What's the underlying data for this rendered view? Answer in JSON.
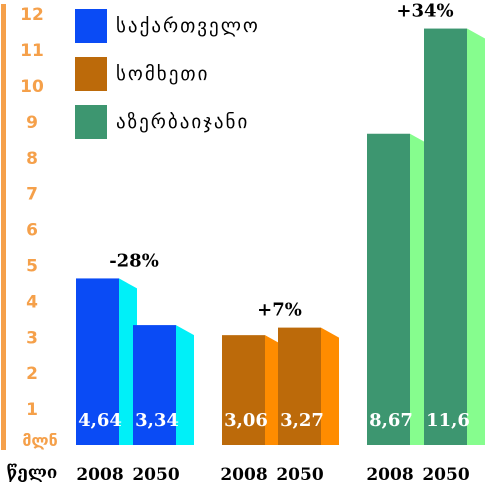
{
  "chart_data": {
    "type": "bar",
    "ylim": [
      0,
      12
    ],
    "yticks": [
      "1",
      "2",
      "3",
      "4",
      "5",
      "6",
      "7",
      "8",
      "9",
      "10",
      "11",
      "12"
    ],
    "y_unit": "მლნ",
    "x_unit": "წელი",
    "grid": false,
    "legend_position": "top-left",
    "categories": [
      "2008",
      "2050"
    ],
    "series": [
      {
        "name": "საქართველო",
        "color": "#0A4BF5",
        "side_color": "#00F0F8",
        "values": [
          4.64,
          3.34
        ],
        "value_labels": [
          "4,64",
          "3,34"
        ],
        "change": "-28%"
      },
      {
        "name": "სომხეთი",
        "color": "#BC6A0A",
        "side_color": "#FF8C00",
        "values": [
          3.06,
          3.27
        ],
        "value_labels": [
          "3,06",
          "3,27"
        ],
        "change": "+7%"
      },
      {
        "name": "აზერბაიჯანი",
        "color": "#3D9670",
        "side_color": "#86FD8E",
        "values": [
          8.67,
          11.6
        ],
        "value_labels": [
          "8,67",
          "11,6"
        ],
        "change": "+34%"
      }
    ],
    "axis_color": "#F5A04A"
  }
}
